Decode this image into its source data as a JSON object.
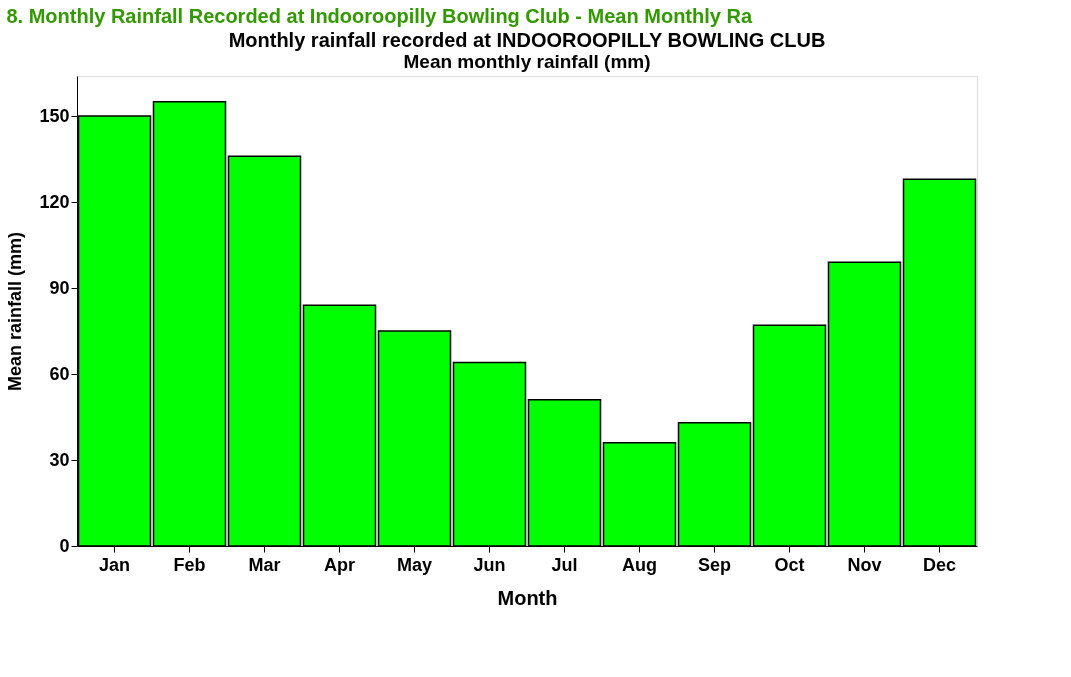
{
  "chart_data": {
    "type": "bar",
    "title": "Monthly rainfall recorded at INDOOROOPILLY BOWLING CLUB",
    "subtitle": "Mean monthly rainfall (mm)",
    "annotations": [
      "8. Monthly Rainfall Recorded at Indooroopilly Bowling Club - Mean Monthly Ra"
    ],
    "xlabel": "Month",
    "ylabel": "Mean rainfall (mm)",
    "categories": [
      "Jan",
      "Feb",
      "Mar",
      "Apr",
      "May",
      "Jun",
      "Jul",
      "Aug",
      "Sep",
      "Oct",
      "Nov",
      "Dec"
    ],
    "values": [
      150,
      155,
      136,
      84,
      75,
      64,
      51,
      36,
      43,
      77,
      99,
      128
    ],
    "color": "#00ff00",
    "ylim": [
      0,
      164
    ],
    "yticks": [
      0,
      30,
      60,
      90,
      120,
      150
    ],
    "grid": false
  }
}
